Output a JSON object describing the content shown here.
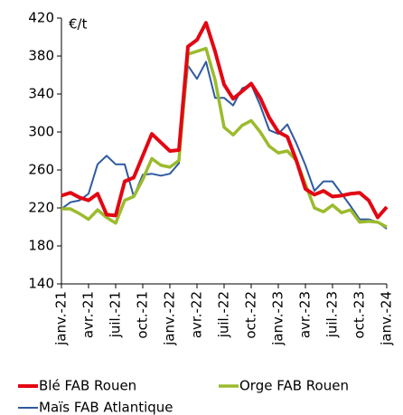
{
  "chart_data": {
    "type": "line",
    "unit_label": "€/t",
    "categories": [
      "janv.-21",
      null,
      null,
      "avr.-21",
      null,
      null,
      "juil.-21",
      null,
      null,
      "oct.-21",
      null,
      null,
      "janv.-22",
      null,
      null,
      "avr.-22",
      null,
      null,
      "juil.-22",
      null,
      null,
      "oct.-22",
      null,
      null,
      "janv.-23",
      null,
      null,
      "avr.-23",
      null,
      null,
      "juil.-23",
      null,
      null,
      "oct.-23",
      null,
      null,
      "janv.-24"
    ],
    "series": [
      {
        "name": "Blé FAB Rouen",
        "color": "#e30613",
        "width": 4,
        "values": [
          233,
          236,
          231,
          228,
          235,
          213,
          212,
          248,
          252,
          275,
          298,
          289,
          280,
          281,
          390,
          397,
          415,
          385,
          350,
          335,
          343,
          351,
          336,
          315,
          300,
          295,
          270,
          240,
          234,
          238,
          232,
          233,
          235,
          236,
          228,
          210,
          221
        ]
      },
      {
        "name": "Orge FAB Rouen",
        "color": "#9bbb2d",
        "width": 3.5,
        "values": [
          219,
          219,
          214,
          208,
          218,
          210,
          204,
          228,
          232,
          250,
          272,
          265,
          263,
          270,
          382,
          385,
          388,
          355,
          305,
          297,
          307,
          312,
          300,
          285,
          278,
          280,
          270,
          245,
          220,
          216,
          223,
          215,
          218,
          205,
          206,
          205,
          200
        ]
      },
      {
        "name": "Maïs FAB Atlantique",
        "color": "#2e5aa0",
        "width": 2,
        "values": [
          219,
          226,
          228,
          235,
          266,
          275,
          266,
          266,
          232,
          255,
          256,
          254,
          256,
          267,
          370,
          356,
          374,
          336,
          336,
          328,
          346,
          350,
          328,
          302,
          298,
          308,
          288,
          265,
          238,
          248,
          248,
          235,
          222,
          208,
          208,
          205,
          198
        ]
      }
    ],
    "ylim": [
      140,
      420
    ],
    "yticks": [
      140,
      180,
      220,
      260,
      300,
      340,
      380,
      420
    ]
  }
}
